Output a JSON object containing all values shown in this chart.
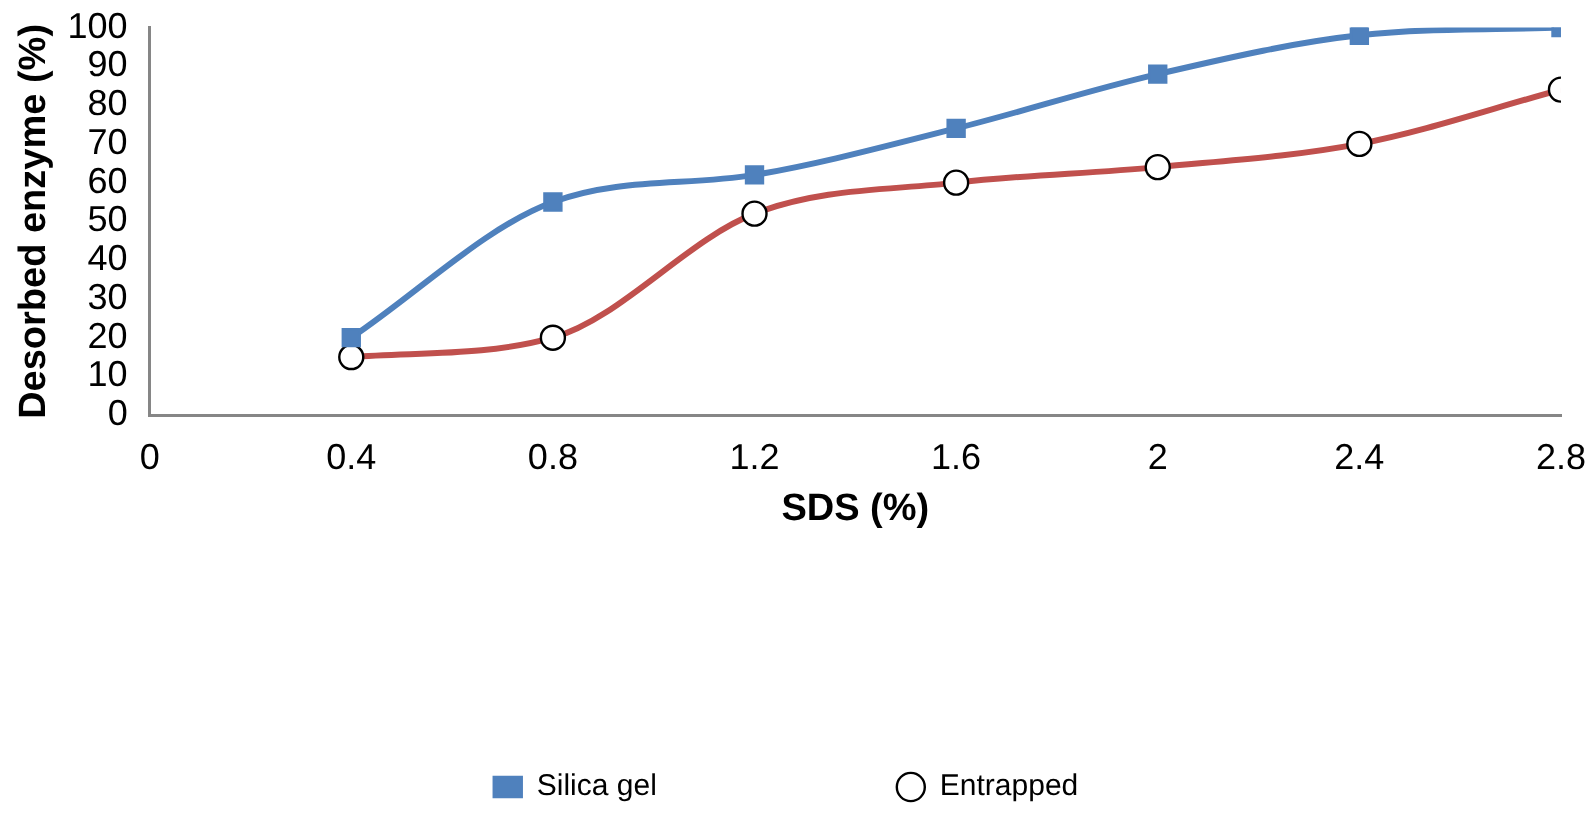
{
  "chart_data": {
    "type": "line",
    "xlabel": "SDS (%)",
    "ylabel": "Desorbed enzyme (%)",
    "x": [
      0.4,
      0.8,
      1.2,
      1.6,
      2,
      2.4,
      2.8
    ],
    "series": [
      {
        "name": "Silica gel",
        "color": "#4f81bd",
        "marker": "square",
        "values": [
          20,
          55,
          62,
          74,
          88,
          98,
          100
        ]
      },
      {
        "name": "Entrapped",
        "color": "#c0504d",
        "marker": "circle",
        "values": [
          15,
          20,
          52,
          60,
          64,
          70,
          84
        ]
      }
    ],
    "xlim": [
      0,
      2.8
    ],
    "xticks": [
      0,
      0.4,
      0.8,
      1.2,
      1.6,
      2,
      2.4,
      2.8
    ],
    "ylim": [
      0,
      100
    ],
    "yticks": [
      0,
      10,
      20,
      30,
      40,
      50,
      60,
      70,
      80,
      90,
      100
    ],
    "grid": false,
    "legend": "bottom"
  }
}
